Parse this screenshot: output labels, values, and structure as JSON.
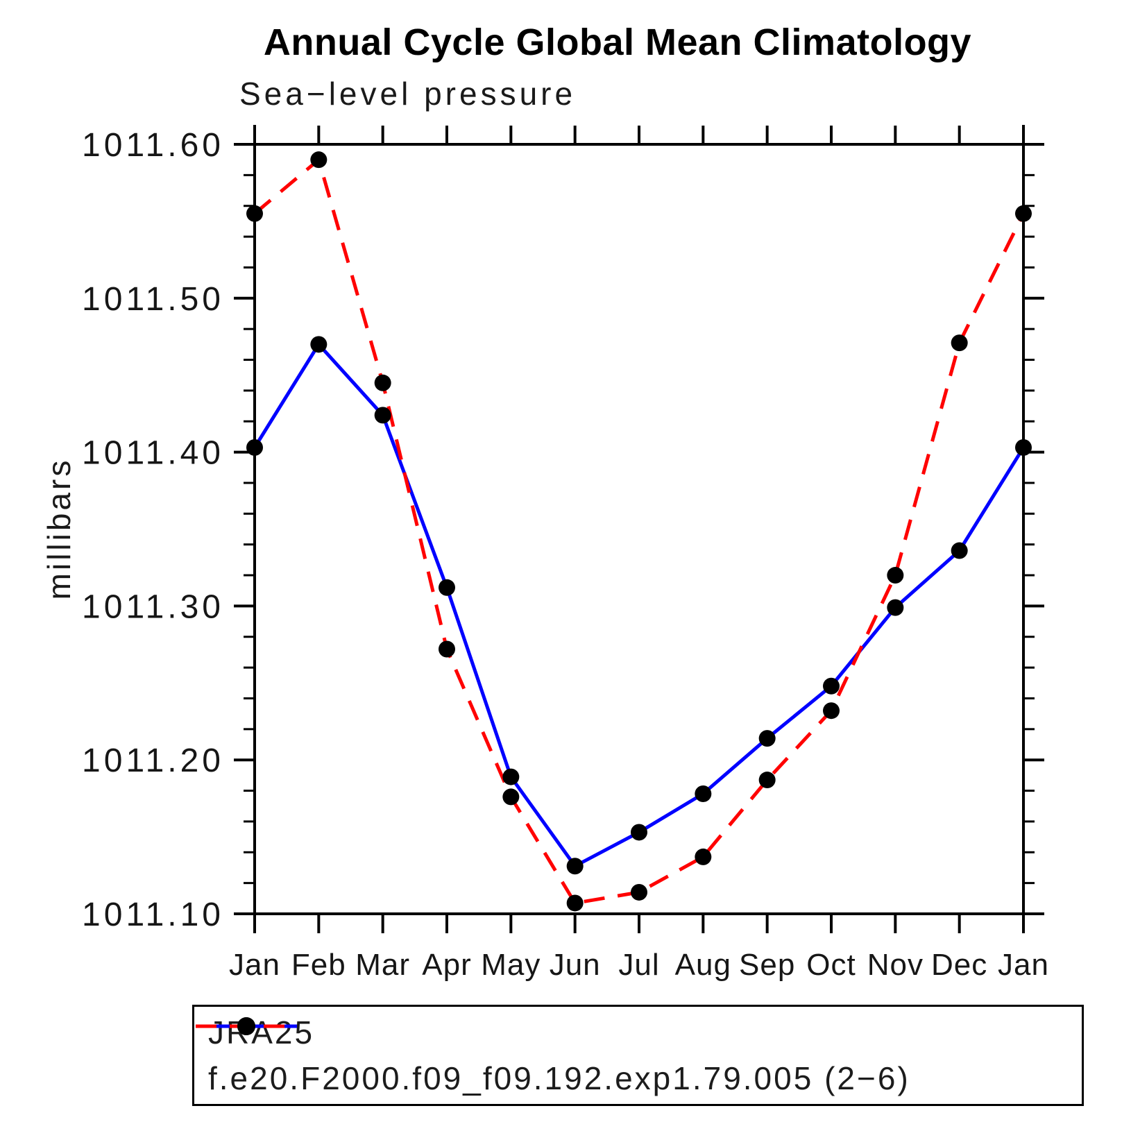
{
  "chart_data": {
    "type": "line",
    "title": "Annual Cycle Global Mean Climatology",
    "subtitle": "Sea−level pressure",
    "ylabel": "millibars",
    "xlabel": "",
    "categories": [
      "Jan",
      "Feb",
      "Mar",
      "Apr",
      "May",
      "Jun",
      "Jul",
      "Aug",
      "Sep",
      "Oct",
      "Nov",
      "Dec",
      "Jan"
    ],
    "ylim": [
      1011.1,
      1011.6
    ],
    "ytick_interval": 0.1,
    "yminor_interval": 0.02,
    "y_tick_labels": [
      "1011.60",
      "1011.50",
      "1011.40",
      "1011.30",
      "1011.20",
      "1011.10"
    ],
    "grid": false,
    "legend_position": "bottom-box",
    "series": [
      {
        "name": "JRA25",
        "color": "#0000ff",
        "style": "solid",
        "marker": "circle",
        "marker_color": "#000000",
        "values": [
          1011.403,
          1011.47,
          1011.424,
          1011.312,
          1011.189,
          1011.131,
          1011.153,
          1011.178,
          1011.214,
          1011.248,
          1011.299,
          1011.336,
          1011.403
        ]
      },
      {
        "name": "f.e20.F2000.f09_f09.192.exp1.79.005 (2−6)",
        "color": "#ff0000",
        "style": "dashed",
        "marker": "circle",
        "marker_color": "#000000",
        "values": [
          1011.555,
          1011.59,
          1011.445,
          1011.272,
          1011.176,
          1011.107,
          1011.114,
          1011.137,
          1011.187,
          1011.232,
          1011.32,
          1011.471,
          1011.555
        ]
      }
    ]
  },
  "legend": {
    "items": [
      {
        "label": "JRA25"
      },
      {
        "label": "f.e20.F2000.f09_f09.192.exp1.79.005 (2−6)"
      }
    ]
  }
}
